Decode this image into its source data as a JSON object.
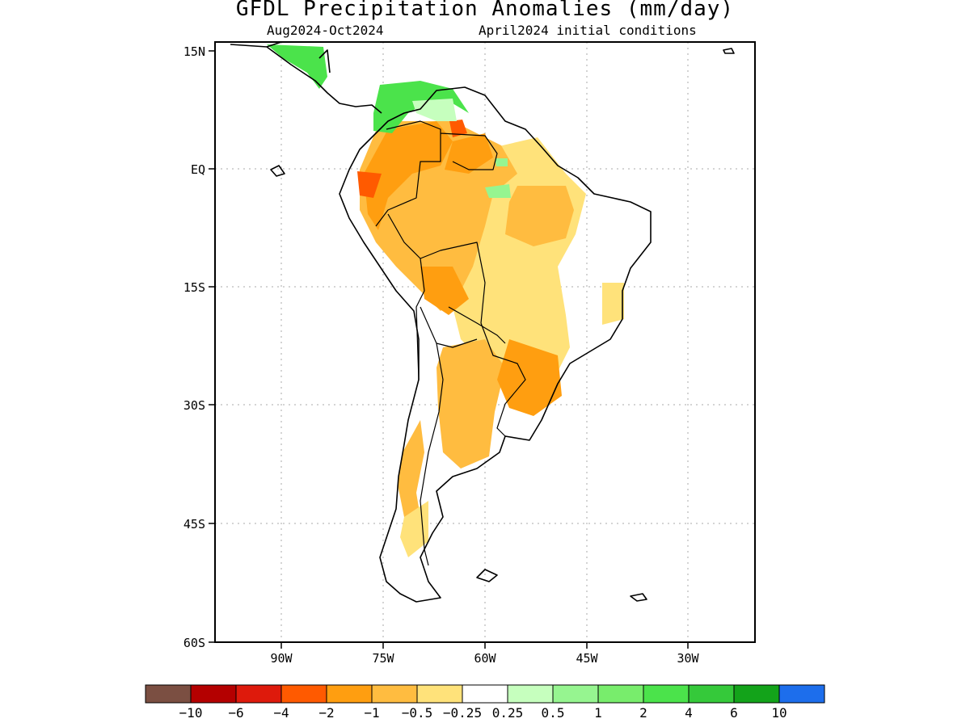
{
  "title": "GFDL Precipitation Anomalies (mm/day)",
  "subtitle_left": "Aug2024-Oct2024",
  "subtitle_right": "April2024 initial conditions",
  "lat_labels": [
    "15N",
    "EQ",
    "15S",
    "30S",
    "45S",
    "60S"
  ],
  "lon_labels": [
    "90W",
    "75W",
    "60W",
    "45W",
    "30W"
  ],
  "colorbar": {
    "colors": [
      "#7b4f42",
      "#b40000",
      "#de1a0c",
      "#ff5a00",
      "#ff9e10",
      "#ffbc40",
      "#ffe27a",
      "#ffffff",
      "#c6ffbe",
      "#96f590",
      "#78ed6c",
      "#4be34b",
      "#35c93a",
      "#13a31a",
      "#1d6eec"
    ],
    "labels": [
      "-10",
      "-6",
      "-4",
      "-2",
      "-1",
      "-0.5",
      "-0.25",
      "0.25",
      "0.5",
      "1",
      "2",
      "4",
      "6",
      "10"
    ]
  }
}
